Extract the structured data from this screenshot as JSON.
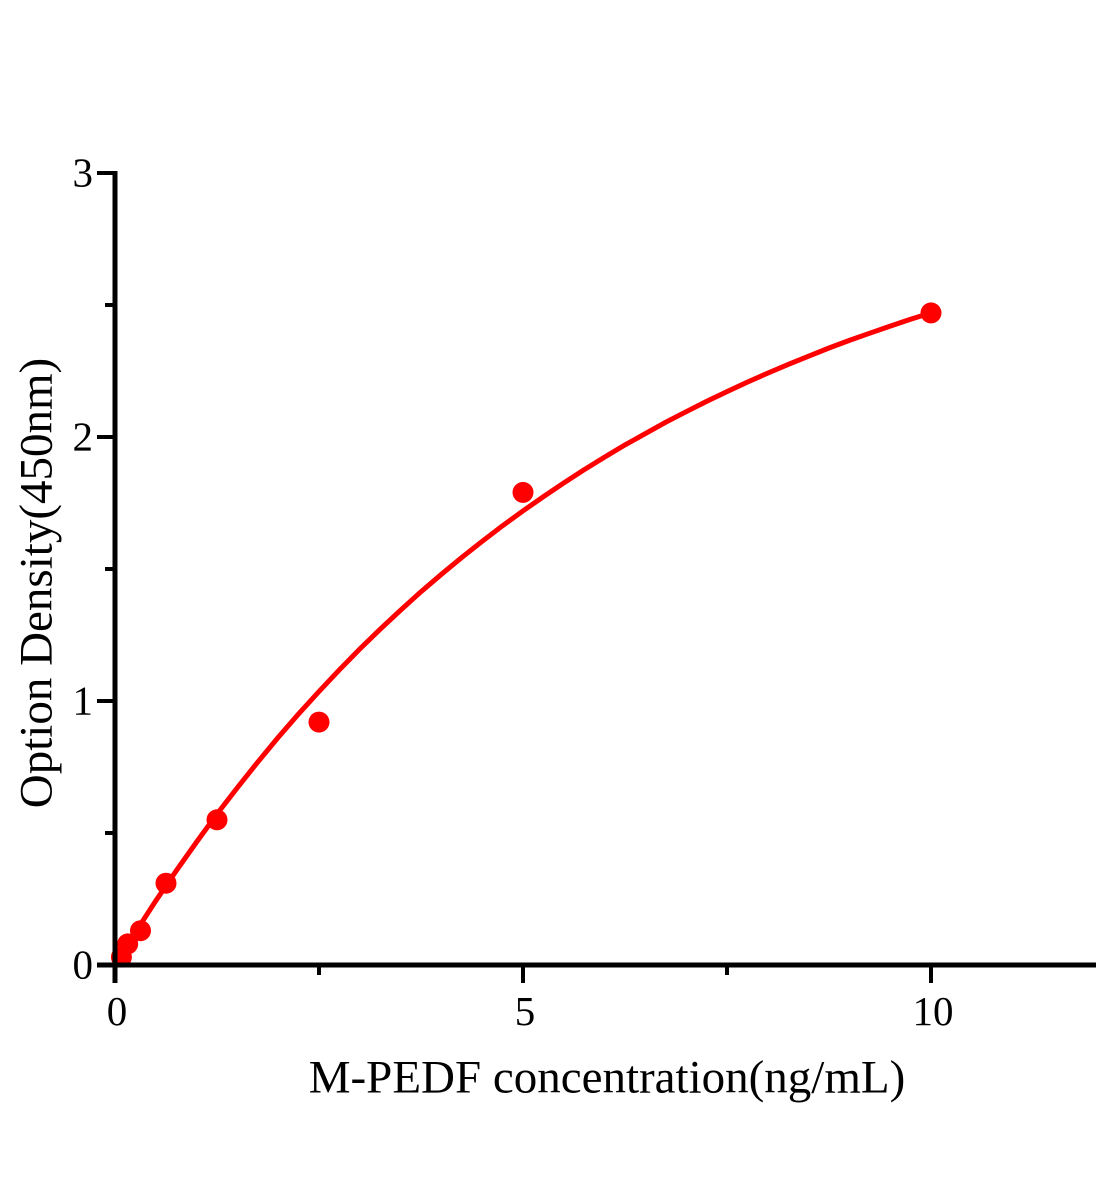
{
  "chart_data": {
    "type": "scatter",
    "title": "",
    "xlabel": "M-PEDF concentration(ng/mL)",
    "ylabel": "Option Density(450nm)",
    "xlim": [
      0,
      12
    ],
    "ylim": [
      0,
      3
    ],
    "grid": false,
    "legend": null,
    "x_major_ticks": [
      0,
      5,
      10
    ],
    "x_major_tick_labels": [
      "0",
      "5",
      "10"
    ],
    "x_minor_ticks": [
      2.5,
      7.5
    ],
    "y_major_ticks": [
      0,
      1,
      2,
      3
    ],
    "y_major_tick_labels": [
      "0",
      "1",
      "2",
      "3"
    ],
    "y_minor_ticks": [
      0.5,
      1.5,
      2.5
    ],
    "series": [
      {
        "name": "standard-points",
        "kind": "scatter",
        "x": [
          0.078,
          0.156,
          0.3125,
          0.625,
          1.25,
          2.5,
          5,
          10
        ],
        "y": [
          0.03,
          0.08,
          0.13,
          0.31,
          0.55,
          0.92,
          1.79,
          2.47
        ]
      },
      {
        "name": "fit-curve",
        "kind": "line",
        "samples": [
          [
            0,
            0
          ],
          [
            0.25,
            0.124
          ],
          [
            0.5,
            0.243
          ],
          [
            0.75,
            0.357
          ],
          [
            1,
            0.466
          ],
          [
            1.25,
            0.572
          ],
          [
            1.5,
            0.672
          ],
          [
            1.75,
            0.769
          ],
          [
            2,
            0.862
          ],
          [
            2.25,
            0.951
          ],
          [
            2.5,
            1.036
          ],
          [
            2.75,
            1.118
          ],
          [
            3,
            1.197
          ],
          [
            3.25,
            1.272
          ],
          [
            3.5,
            1.344
          ],
          [
            3.75,
            1.414
          ],
          [
            4,
            1.48
          ],
          [
            4.25,
            1.544
          ],
          [
            4.5,
            1.605
          ],
          [
            4.75,
            1.664
          ],
          [
            5,
            1.72
          ],
          [
            5.25,
            1.774
          ],
          [
            5.5,
            1.826
          ],
          [
            5.75,
            1.876
          ],
          [
            6,
            1.924
          ],
          [
            6.25,
            1.97
          ],
          [
            6.5,
            2.013
          ],
          [
            6.75,
            2.056
          ],
          [
            7,
            2.096
          ],
          [
            7.25,
            2.135
          ],
          [
            7.5,
            2.172
          ],
          [
            7.75,
            2.208
          ],
          [
            8,
            2.242
          ],
          [
            8.25,
            2.275
          ],
          [
            8.5,
            2.306
          ],
          [
            8.75,
            2.337
          ],
          [
            9,
            2.366
          ],
          [
            9.25,
            2.393
          ],
          [
            9.5,
            2.42
          ],
          [
            9.75,
            2.446
          ],
          [
            10,
            2.47
          ]
        ]
      }
    ],
    "colors": {
      "accent_red": "#ff0000",
      "axis_black": "#000000",
      "background": "#ffffff"
    }
  }
}
